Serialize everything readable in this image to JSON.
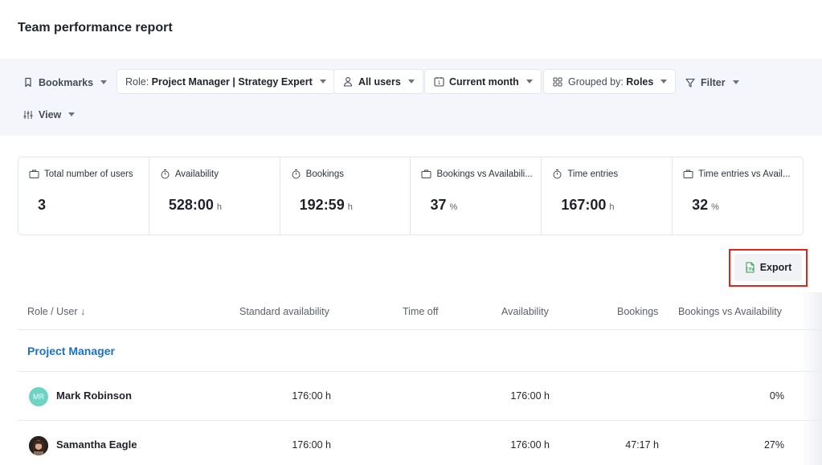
{
  "page": {
    "title": "Team performance report"
  },
  "toolbar": {
    "bookmarks": "Bookmarks",
    "role_prefix": "Role:",
    "role_value": "Project Manager | Strategy Expert",
    "users": "All users",
    "period": "Current month",
    "grouped_prefix": "Grouped by:",
    "grouped_value": "Roles",
    "filter": "Filter",
    "view": "View"
  },
  "stats": [
    {
      "label": "Total number of users",
      "value": "3",
      "unit": "",
      "icon": "briefcase-icon"
    },
    {
      "label": "Availability",
      "value": "528:00",
      "unit": "h",
      "icon": "stopwatch-icon"
    },
    {
      "label": "Bookings",
      "value": "192:59",
      "unit": "h",
      "icon": "stopwatch-icon"
    },
    {
      "label": "Bookings vs Availabili...",
      "value": "37",
      "unit": "%",
      "icon": "briefcase-icon"
    },
    {
      "label": "Time entries",
      "value": "167:00",
      "unit": "h",
      "icon": "stopwatch-icon"
    },
    {
      "label": "Time entries vs Avail...",
      "value": "32",
      "unit": "%",
      "icon": "briefcase-icon"
    }
  ],
  "export": {
    "label": "Export",
    "icon": "csv-file-icon"
  },
  "table": {
    "headers": {
      "role_user": "Role / User ↓",
      "standard_availability": "Standard availability",
      "time_off": "Time off",
      "availability": "Availability",
      "bookings": "Bookings",
      "bookings_vs_availability": "Bookings vs Availability"
    },
    "group": "Project Manager",
    "rows": [
      {
        "initials": "MR",
        "name": "Mark Robinson",
        "standard_availability": "176:00 h",
        "time_off": "",
        "availability": "176:00 h",
        "bookings": "",
        "bookings_vs_availability": "0%"
      },
      {
        "initials": "",
        "name": "Samantha Eagle",
        "standard_availability": "176:00 h",
        "time_off": "",
        "availability": "176:00 h",
        "bookings": "47:17 h",
        "bookings_vs_availability": "27%"
      }
    ]
  },
  "colors": {
    "accent_blue": "#1672c7",
    "highlight_red": "#e0251b",
    "toolbar_bg": "#f4f6fb"
  }
}
